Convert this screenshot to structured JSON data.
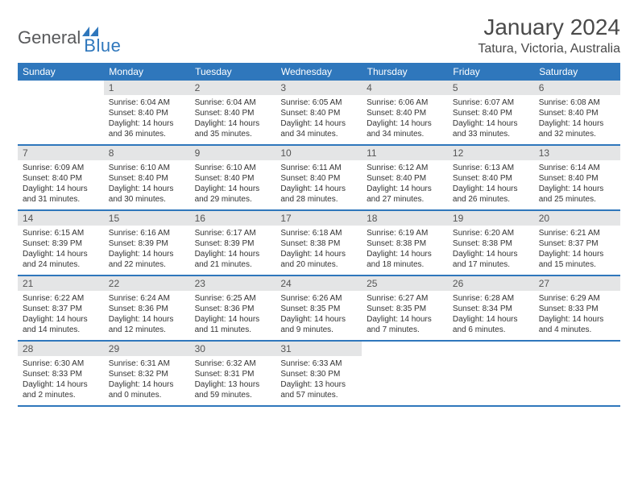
{
  "brand": {
    "part1": "General",
    "part2": "Blue",
    "logo_color": "#2f77bc",
    "text_color": "#58595b"
  },
  "title": "January 2024",
  "location": "Tatura, Victoria, Australia",
  "colors": {
    "header_bg": "#2f77bc",
    "header_fg": "#ffffff",
    "daynum_bg": "#e4e5e6",
    "rule": "#2f77bc",
    "body_text": "#333333"
  },
  "weekdays": [
    "Sunday",
    "Monday",
    "Tuesday",
    "Wednesday",
    "Thursday",
    "Friday",
    "Saturday"
  ],
  "weeks": [
    [
      {
        "n": "",
        "sr": "",
        "ss": "",
        "dl": ""
      },
      {
        "n": "1",
        "sr": "6:04 AM",
        "ss": "8:40 PM",
        "dl": "14 hours and 36 minutes."
      },
      {
        "n": "2",
        "sr": "6:04 AM",
        "ss": "8:40 PM",
        "dl": "14 hours and 35 minutes."
      },
      {
        "n": "3",
        "sr": "6:05 AM",
        "ss": "8:40 PM",
        "dl": "14 hours and 34 minutes."
      },
      {
        "n": "4",
        "sr": "6:06 AM",
        "ss": "8:40 PM",
        "dl": "14 hours and 34 minutes."
      },
      {
        "n": "5",
        "sr": "6:07 AM",
        "ss": "8:40 PM",
        "dl": "14 hours and 33 minutes."
      },
      {
        "n": "6",
        "sr": "6:08 AM",
        "ss": "8:40 PM",
        "dl": "14 hours and 32 minutes."
      }
    ],
    [
      {
        "n": "7",
        "sr": "6:09 AM",
        "ss": "8:40 PM",
        "dl": "14 hours and 31 minutes."
      },
      {
        "n": "8",
        "sr": "6:10 AM",
        "ss": "8:40 PM",
        "dl": "14 hours and 30 minutes."
      },
      {
        "n": "9",
        "sr": "6:10 AM",
        "ss": "8:40 PM",
        "dl": "14 hours and 29 minutes."
      },
      {
        "n": "10",
        "sr": "6:11 AM",
        "ss": "8:40 PM",
        "dl": "14 hours and 28 minutes."
      },
      {
        "n": "11",
        "sr": "6:12 AM",
        "ss": "8:40 PM",
        "dl": "14 hours and 27 minutes."
      },
      {
        "n": "12",
        "sr": "6:13 AM",
        "ss": "8:40 PM",
        "dl": "14 hours and 26 minutes."
      },
      {
        "n": "13",
        "sr": "6:14 AM",
        "ss": "8:40 PM",
        "dl": "14 hours and 25 minutes."
      }
    ],
    [
      {
        "n": "14",
        "sr": "6:15 AM",
        "ss": "8:39 PM",
        "dl": "14 hours and 24 minutes."
      },
      {
        "n": "15",
        "sr": "6:16 AM",
        "ss": "8:39 PM",
        "dl": "14 hours and 22 minutes."
      },
      {
        "n": "16",
        "sr": "6:17 AM",
        "ss": "8:39 PM",
        "dl": "14 hours and 21 minutes."
      },
      {
        "n": "17",
        "sr": "6:18 AM",
        "ss": "8:38 PM",
        "dl": "14 hours and 20 minutes."
      },
      {
        "n": "18",
        "sr": "6:19 AM",
        "ss": "8:38 PM",
        "dl": "14 hours and 18 minutes."
      },
      {
        "n": "19",
        "sr": "6:20 AM",
        "ss": "8:38 PM",
        "dl": "14 hours and 17 minutes."
      },
      {
        "n": "20",
        "sr": "6:21 AM",
        "ss": "8:37 PM",
        "dl": "14 hours and 15 minutes."
      }
    ],
    [
      {
        "n": "21",
        "sr": "6:22 AM",
        "ss": "8:37 PM",
        "dl": "14 hours and 14 minutes."
      },
      {
        "n": "22",
        "sr": "6:24 AM",
        "ss": "8:36 PM",
        "dl": "14 hours and 12 minutes."
      },
      {
        "n": "23",
        "sr": "6:25 AM",
        "ss": "8:36 PM",
        "dl": "14 hours and 11 minutes."
      },
      {
        "n": "24",
        "sr": "6:26 AM",
        "ss": "8:35 PM",
        "dl": "14 hours and 9 minutes."
      },
      {
        "n": "25",
        "sr": "6:27 AM",
        "ss": "8:35 PM",
        "dl": "14 hours and 7 minutes."
      },
      {
        "n": "26",
        "sr": "6:28 AM",
        "ss": "8:34 PM",
        "dl": "14 hours and 6 minutes."
      },
      {
        "n": "27",
        "sr": "6:29 AM",
        "ss": "8:33 PM",
        "dl": "14 hours and 4 minutes."
      }
    ],
    [
      {
        "n": "28",
        "sr": "6:30 AM",
        "ss": "8:33 PM",
        "dl": "14 hours and 2 minutes."
      },
      {
        "n": "29",
        "sr": "6:31 AM",
        "ss": "8:32 PM",
        "dl": "14 hours and 0 minutes."
      },
      {
        "n": "30",
        "sr": "6:32 AM",
        "ss": "8:31 PM",
        "dl": "13 hours and 59 minutes."
      },
      {
        "n": "31",
        "sr": "6:33 AM",
        "ss": "8:30 PM",
        "dl": "13 hours and 57 minutes."
      },
      {
        "n": "",
        "sr": "",
        "ss": "",
        "dl": ""
      },
      {
        "n": "",
        "sr": "",
        "ss": "",
        "dl": ""
      },
      {
        "n": "",
        "sr": "",
        "ss": "",
        "dl": ""
      }
    ]
  ],
  "labels": {
    "sunrise": "Sunrise: ",
    "sunset": "Sunset: ",
    "daylight": "Daylight: "
  }
}
